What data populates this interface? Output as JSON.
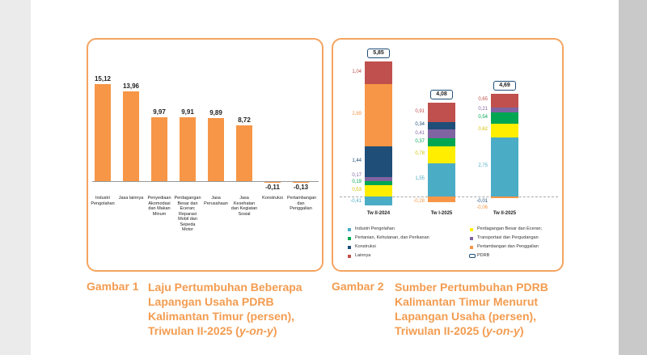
{
  "chart_data": [
    {
      "type": "bar",
      "categories": [
        "Industri Pengolahan",
        "Jasa lainnya",
        "Penyediaan Akomodasi dan Makan Minum",
        "Perdagangan Besar dan Eceran; Reparasi Mobil dan Sepeda Motor",
        "Jasa Perusahaan",
        "Jasa Kesehatan dan Kegiatan Sosial",
        "Konstruksi",
        "Pertambangan dan Penggalian"
      ],
      "values": [
        15.12,
        13.96,
        9.97,
        9.91,
        9.89,
        8.72,
        -0.11,
        -0.13
      ],
      "value_labels": [
        "15,12",
        "13,96",
        "9,97",
        "9,91",
        "9,89",
        "8,72",
        "-0,11",
        "-0,13"
      ],
      "color": "#f79646",
      "caption_label": "Gambar 1",
      "caption": [
        "Laju Pertumbuhan Beberapa Lapangan Usaha PDRB Kalimantan Timur (persen), Triwulan II-2025 (",
        "y-on-y",
        ")"
      ]
    },
    {
      "type": "stacked_bar",
      "categories": [
        "Tw II-2024",
        "Tw I-2025",
        "Tw II-2025"
      ],
      "series": [
        {
          "name": "Industri Pengolahan",
          "color": "#4bacc6",
          "values": [
            -0.41,
            1.55,
            2.75
          ],
          "value_labels": [
            "-0,41",
            "1,55",
            "2,75"
          ]
        },
        {
          "name": "Perdagangan Besar dan Eceran;",
          "color": "#ffee00",
          "values": [
            0.53,
            0.78,
            0.62
          ],
          "value_labels": [
            "0,53",
            "0,78",
            "0,62"
          ]
        },
        {
          "name": "Pertanian, Kehutanan, dan Perikanan",
          "color": "#00a651",
          "values": [
            0.19,
            0.37,
            0.54
          ],
          "value_labels": [
            "0,19",
            "0,37",
            "0,54"
          ]
        },
        {
          "name": "Transportasi dan Pergudangan",
          "color": "#8064a2",
          "values": [
            0.17,
            0.41,
            0.21
          ],
          "value_labels": [
            "0,17",
            "0,41",
            "0,21"
          ]
        },
        {
          "name": "Konstruksi",
          "color": "#1f4e79",
          "values": [
            1.44,
            0.34,
            -0.01
          ],
          "value_labels": [
            "1,44",
            "0,34",
            "-0,01"
          ]
        },
        {
          "name": "Pertambangan dan Penggalian",
          "color": "#f79646",
          "values": [
            2.89,
            -0.28,
            -0.06
          ],
          "value_labels": [
            "2,89",
            "-0,28",
            "-0,06"
          ]
        },
        {
          "name": "Lainnya",
          "color": "#c0504d",
          "values": [
            1.04,
            0.91,
            0.65
          ],
          "value_labels": [
            "1,04",
            "0,91",
            "0,65"
          ]
        }
      ],
      "total": {
        "name": "PDRB",
        "values": [
          5.85,
          4.08,
          4.69
        ],
        "value_labels": [
          "5,85",
          "4,08",
          "4,69"
        ]
      },
      "caption_label": "Gambar 2",
      "caption": [
        "Sumber Pertumbuhan PDRB Kalimantan Timur Menurut Lapangan Usaha (persen), Triwulan II-2025 (",
        "y-on-y",
        ")"
      ]
    }
  ]
}
